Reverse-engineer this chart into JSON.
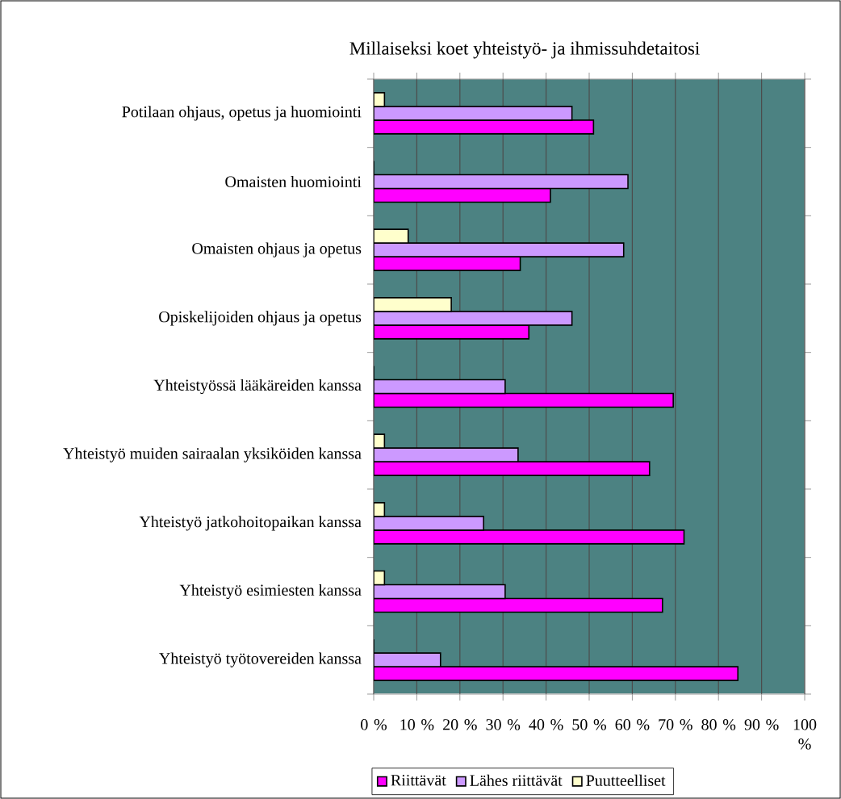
{
  "chart_data": {
    "type": "bar",
    "orientation": "horizontal",
    "title": "Millaiseksi koet yhteistyö- ja ihmissuhdetaitosi",
    "categories": [
      "Potilaan ohjaus, opetus ja huomiointi",
      "Omaisten huomiointi",
      "Omaisten ohjaus ja opetus",
      "Opiskelijoiden ohjaus ja opetus",
      "Yhteistyössä lääkäreiden kanssa",
      "Yhteistyö muiden sairaalan yksiköiden kanssa",
      "Yhteistyö jatkohoitopaikan kanssa",
      "Yhteistyö esimiesten kanssa",
      "Yhteistyö työtovereiden kanssa"
    ],
    "series": [
      {
        "name": "Riittävät",
        "color": "#ff00ff",
        "values": [
          51,
          41,
          34,
          36,
          69.5,
          64,
          72,
          67,
          84.5
        ]
      },
      {
        "name": "Lähes riittävät",
        "color": "#cc99ff",
        "values": [
          46,
          59,
          58,
          46,
          30.5,
          33.5,
          25.5,
          30.5,
          15.5
        ]
      },
      {
        "name": "Puutteelliset",
        "color": "#ffffcc",
        "values": [
          2.5,
          0,
          8,
          18,
          0,
          2.5,
          2.5,
          2.5,
          0
        ]
      }
    ],
    "xlim": [
      0,
      100
    ],
    "xticks": [
      {
        "value": 0,
        "label": "0 %"
      },
      {
        "value": 10,
        "label": "10 %"
      },
      {
        "value": 20,
        "label": "20 %"
      },
      {
        "value": 30,
        "label": "30 %"
      },
      {
        "value": 40,
        "label": "40 %"
      },
      {
        "value": 50,
        "label": "50 %"
      },
      {
        "value": 60,
        "label": "60 %"
      },
      {
        "value": 70,
        "label": "70 %"
      },
      {
        "value": 80,
        "label": "80 %"
      },
      {
        "value": 90,
        "label": "90 %"
      },
      {
        "value": 100,
        "label": "100 %"
      }
    ],
    "grid": "x",
    "legend": "bottom"
  }
}
